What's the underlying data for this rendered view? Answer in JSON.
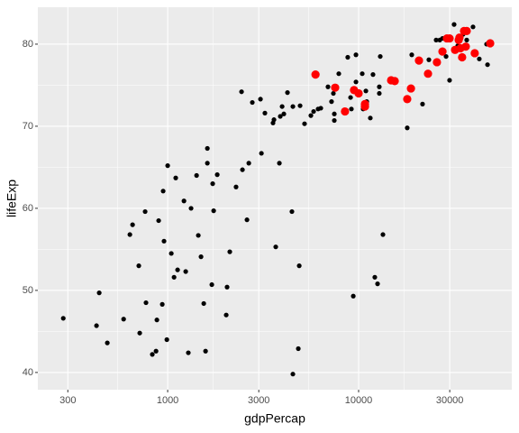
{
  "chart_data": {
    "type": "scatter",
    "x_label": "gdpPercap",
    "y_label": "lifeExp",
    "xlog": true,
    "grid": true,
    "xlim": [
      209,
      63400
    ],
    "ylim": [
      37.9,
      84.5
    ],
    "xticks": [
      300,
      1000,
      3000,
      10000,
      30000
    ],
    "yticks": [
      40,
      50,
      60,
      70,
      80
    ],
    "series": [
      {
        "color": "#000000",
        "x": [
          284,
          424,
          438,
          483,
          588,
          634,
          655,
          706,
          714,
          762,
          770,
          831,
          869,
          878,
          897,
          937,
          947,
          957,
          990,
          1000,
          1045,
          1080,
          1102,
          1127,
          1217,
          1243,
          1283,
          1326,
          1417,
          1447,
          1495,
          1545,
          1579,
          1614,
          1614,
          1703,
          1721,
          1741,
          1818,
          2026,
          2047,
          2115,
          2281,
          2437,
          2464,
          2602,
          2660,
          2775,
          3062,
          3097,
          3230,
          3562,
          3603,
          3681,
          3846,
          3888,
          3975,
          4059,
          4240,
          4474,
          4526,
          4526,
          4832,
          4886,
          4937,
          5209,
          5624,
          5811,
          6134,
          6338,
          6911,
          7213,
          7375,
          7459,
          7459,
          7873,
          8770,
          9074,
          9165,
          9376,
          9684,
          9684,
          10446,
          10562,
          10914,
          11029,
          11514,
          11893,
          12154,
          12564,
          12832,
          12832,
          12979,
          13408,
          17971,
          18978,
          21612,
          23328,
          25461,
          26606,
          27484,
          28701,
          29941,
          31623,
          33040,
          35237,
          36818,
          39724,
          42854,
          46774,
          47315
        ],
        "values": [
          46.6,
          45.7,
          49.7,
          43.6,
          46.5,
          56.8,
          58.0,
          53.0,
          44.8,
          59.6,
          48.5,
          42.2,
          42.6,
          46.4,
          58.5,
          48.3,
          62.1,
          56.0,
          44.0,
          65.2,
          54.5,
          51.6,
          63.7,
          52.5,
          60.9,
          52.3,
          42.4,
          60.0,
          64.0,
          56.7,
          54.1,
          48.4,
          42.6,
          67.3,
          65.5,
          50.7,
          63.0,
          59.7,
          64.1,
          47.0,
          50.4,
          54.7,
          62.6,
          74.2,
          64.7,
          58.6,
          65.5,
          72.9,
          73.3,
          66.7,
          71.6,
          70.4,
          70.8,
          55.3,
          65.5,
          71.2,
          72.4,
          71.5,
          74.1,
          59.6,
          72.4,
          39.8,
          42.9,
          53.0,
          72.5,
          70.3,
          71.3,
          71.8,
          72.1,
          72.2,
          74.8,
          73.0,
          74.0,
          70.7,
          71.5,
          76.4,
          78.4,
          73.5,
          72.1,
          49.3,
          78.7,
          75.4,
          76.4,
          72.1,
          74.3,
          73.0,
          71.0,
          76.3,
          51.6,
          50.8,
          74.0,
          74.8,
          78.5,
          56.8,
          69.8,
          78.7,
          72.7,
          78.1,
          80.5,
          80.5,
          80.7,
          78.5,
          75.6,
          82.4,
          79.8,
          81.2,
          80.5,
          82.1,
          78.2,
          80.0,
          77.5
        ]
      },
      {
        "color": "#ff0000",
        "x": [
          5946,
          7536,
          8485,
          9462,
          10000,
          10792,
          10792,
          14794,
          15453,
          17971,
          18794,
          20701,
          23087,
          25709,
          27484,
          28998,
          29941,
          31989,
          33420,
          33743,
          34150,
          34838,
          35650,
          36399,
          36818,
          40551,
          48865
        ],
        "values": [
          76.3,
          74.7,
          71.8,
          74.4,
          74.0,
          72.7,
          72.4,
          75.6,
          75.5,
          73.3,
          74.6,
          78.0,
          76.4,
          77.8,
          79.1,
          80.7,
          80.7,
          79.3,
          80.5,
          80.8,
          79.5,
          78.4,
          81.6,
          79.7,
          81.6,
          78.9,
          80.1
        ]
      }
    ]
  }
}
